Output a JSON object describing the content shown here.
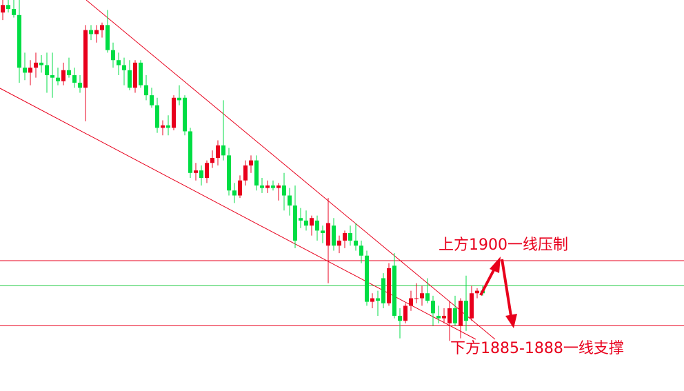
{
  "chart_data": {
    "type": "candlestick",
    "up_color": "#e8001c",
    "down_color": "#00dd44",
    "ylim": [
      1874,
      1952
    ],
    "ohlc": [
      [
        1949.5,
        1952.0,
        1948.0,
        1951.0
      ],
      [
        1951.0,
        1952.0,
        1949.5,
        1950.2
      ],
      [
        1950.2,
        1952.0,
        1948.5,
        1949.0
      ],
      [
        1949.0,
        1952.0,
        1935.5,
        1938.5
      ],
      [
        1938.5,
        1941.5,
        1936.0,
        1937.5
      ],
      [
        1937.5,
        1940.0,
        1935.0,
        1938.5
      ],
      [
        1938.5,
        1941.5,
        1936.5,
        1939.5
      ],
      [
        1939.5,
        1941.0,
        1937.5,
        1939.0
      ],
      [
        1939.0,
        1941.5,
        1933.5,
        1937.0
      ],
      [
        1937.0,
        1941.5,
        1932.5,
        1936.5
      ],
      [
        1936.5,
        1938.5,
        1935.0,
        1935.8
      ],
      [
        1935.8,
        1939.5,
        1935.0,
        1938.0
      ],
      [
        1938.0,
        1940.5,
        1936.5,
        1937.0
      ],
      [
        1937.0,
        1938.5,
        1934.5,
        1935.5
      ],
      [
        1935.5,
        1937.0,
        1933.5,
        1934.5
      ],
      [
        1934.5,
        1947.0,
        1927.8,
        1946.0
      ],
      [
        1946.0,
        1947.0,
        1944.0,
        1945.2
      ],
      [
        1945.2,
        1947.0,
        1943.5,
        1946.0
      ],
      [
        1946.0,
        1947.5,
        1944.5,
        1947.0
      ],
      [
        1947.0,
        1950.0,
        1941.5,
        1942.0
      ],
      [
        1942.0,
        1943.5,
        1938.5,
        1940.0
      ],
      [
        1940.0,
        1941.5,
        1937.0,
        1939.0
      ],
      [
        1939.0,
        1940.5,
        1935.0,
        1938.0
      ],
      [
        1938.0,
        1940.0,
        1934.0,
        1934.5
      ],
      [
        1934.5,
        1940.0,
        1933.5,
        1939.5
      ],
      [
        1939.5,
        1940.0,
        1934.5,
        1935.0
      ],
      [
        1935.0,
        1937.0,
        1932.0,
        1933.0
      ],
      [
        1933.0,
        1934.5,
        1930.5,
        1931.0
      ],
      [
        1931.0,
        1932.5,
        1925.5,
        1926.5
      ],
      [
        1926.5,
        1928.0,
        1925.0,
        1927.0
      ],
      [
        1927.0,
        1929.0,
        1925.0,
        1926.5
      ],
      [
        1926.5,
        1933.0,
        1926.0,
        1932.5
      ],
      [
        1932.5,
        1935.0,
        1931.0,
        1932.0
      ],
      [
        1932.5,
        1933.0,
        1925.0,
        1925.8
      ],
      [
        1925.8,
        1926.5,
        1916.5,
        1917.5
      ],
      [
        1917.5,
        1919.5,
        1916.0,
        1918.0
      ],
      [
        1918.0,
        1919.0,
        1915.0,
        1916.5
      ],
      [
        1916.5,
        1920.0,
        1915.5,
        1919.5
      ],
      [
        1919.5,
        1922.0,
        1918.5,
        1920.5
      ],
      [
        1920.5,
        1924.0,
        1919.0,
        1923.0
      ],
      [
        1923.0,
        1932.0,
        1920.0,
        1921.0
      ],
      [
        1921.0,
        1922.5,
        1913.0,
        1914.0
      ],
      [
        1914.0,
        1915.5,
        1911.5,
        1913.0
      ],
      [
        1913.0,
        1917.0,
        1912.5,
        1916.0
      ],
      [
        1916.0,
        1920.0,
        1915.0,
        1919.0
      ],
      [
        1919.0,
        1921.0,
        1917.5,
        1920.0
      ],
      [
        1920.0,
        1921.0,
        1914.0,
        1915.0
      ],
      [
        1915.0,
        1916.5,
        1913.5,
        1914.5
      ],
      [
        1914.5,
        1916.0,
        1913.5,
        1915.0
      ],
      [
        1915.0,
        1916.0,
        1914.0,
        1914.5
      ],
      [
        1914.5,
        1915.5,
        1912.0,
        1915.0
      ],
      [
        1915.0,
        1917.5,
        1910.0,
        1913.0
      ],
      [
        1913.0,
        1914.5,
        1909.0,
        1911.0
      ],
      [
        1911.0,
        1915.0,
        1902.5,
        1904.0
      ],
      [
        1908.5,
        1910.5,
        1906.5,
        1908.0
      ],
      [
        1908.0,
        1910.0,
        1906.0,
        1907.0
      ],
      [
        1907.0,
        1909.0,
        1905.0,
        1908.5
      ],
      [
        1908.0,
        1909.0,
        1904.0,
        1906.0
      ],
      [
        1906.0,
        1907.0,
        1903.5,
        1905.5
      ],
      [
        1903.0,
        1912.5,
        1895.5,
        1907.5
      ],
      [
        1907.0,
        1908.5,
        1902.0,
        1903.0
      ],
      [
        1903.0,
        1905.0,
        1901.5,
        1904.0
      ],
      [
        1904.0,
        1906.0,
        1902.5,
        1905.5
      ],
      [
        1905.5,
        1907.0,
        1903.0,
        1904.0
      ],
      [
        1904.0,
        1907.5,
        1902.0,
        1903.0
      ],
      [
        1903.0,
        1904.0,
        1899.5,
        1901.0
      ],
      [
        1901.0,
        1902.0,
        1891.0,
        1891.8
      ],
      [
        1891.8,
        1893.5,
        1890.5,
        1892.5
      ],
      [
        1892.5,
        1894.0,
        1889.0,
        1892.0
      ],
      [
        1896.5,
        1897.5,
        1890.5,
        1891.5
      ],
      [
        1891.5,
        1899.5,
        1891.0,
        1898.5
      ],
      [
        1899.0,
        1901.5,
        1888.5,
        1889.0
      ],
      [
        1889.0,
        1890.5,
        1884.5,
        1888.0
      ],
      [
        1888.0,
        1891.5,
        1887.5,
        1891.0
      ],
      [
        1891.0,
        1894.0,
        1890.0,
        1892.5
      ],
      [
        1892.5,
        1895.5,
        1891.5,
        1892.5
      ],
      [
        1892.5,
        1895.0,
        1891.0,
        1893.5
      ],
      [
        1893.5,
        1896.5,
        1891.5,
        1892.0
      ],
      [
        1892.0,
        1893.0,
        1887.0,
        1889.5
      ],
      [
        1889.0,
        1891.0,
        1887.5,
        1888.5
      ],
      [
        1888.5,
        1890.5,
        1887.5,
        1889.0
      ],
      [
        1887.5,
        1892.0,
        1884.0,
        1890.5
      ],
      [
        1890.5,
        1893.0,
        1887.0,
        1887.5
      ],
      [
        1887.0,
        1892.5,
        1884.5,
        1892.0
      ],
      [
        1892.0,
        1897.0,
        1886.0,
        1888.0
      ],
      [
        1888.5,
        1895.0,
        1888.0,
        1893.5
      ],
      [
        1893.5,
        1894.5,
        1892.5,
        1894.0
      ],
      [
        1894.0,
        1895.0,
        1893.0,
        1893.5
      ]
    ],
    "hlines": [
      {
        "value": 1900,
        "color": "#e8001c"
      },
      {
        "value": 1895,
        "color": "#22cc44"
      },
      {
        "value": 1887,
        "color": "#e8001c"
      }
    ],
    "annotations": [
      "上方1900一线压制",
      "下方1885-1888一线支撑"
    ]
  }
}
